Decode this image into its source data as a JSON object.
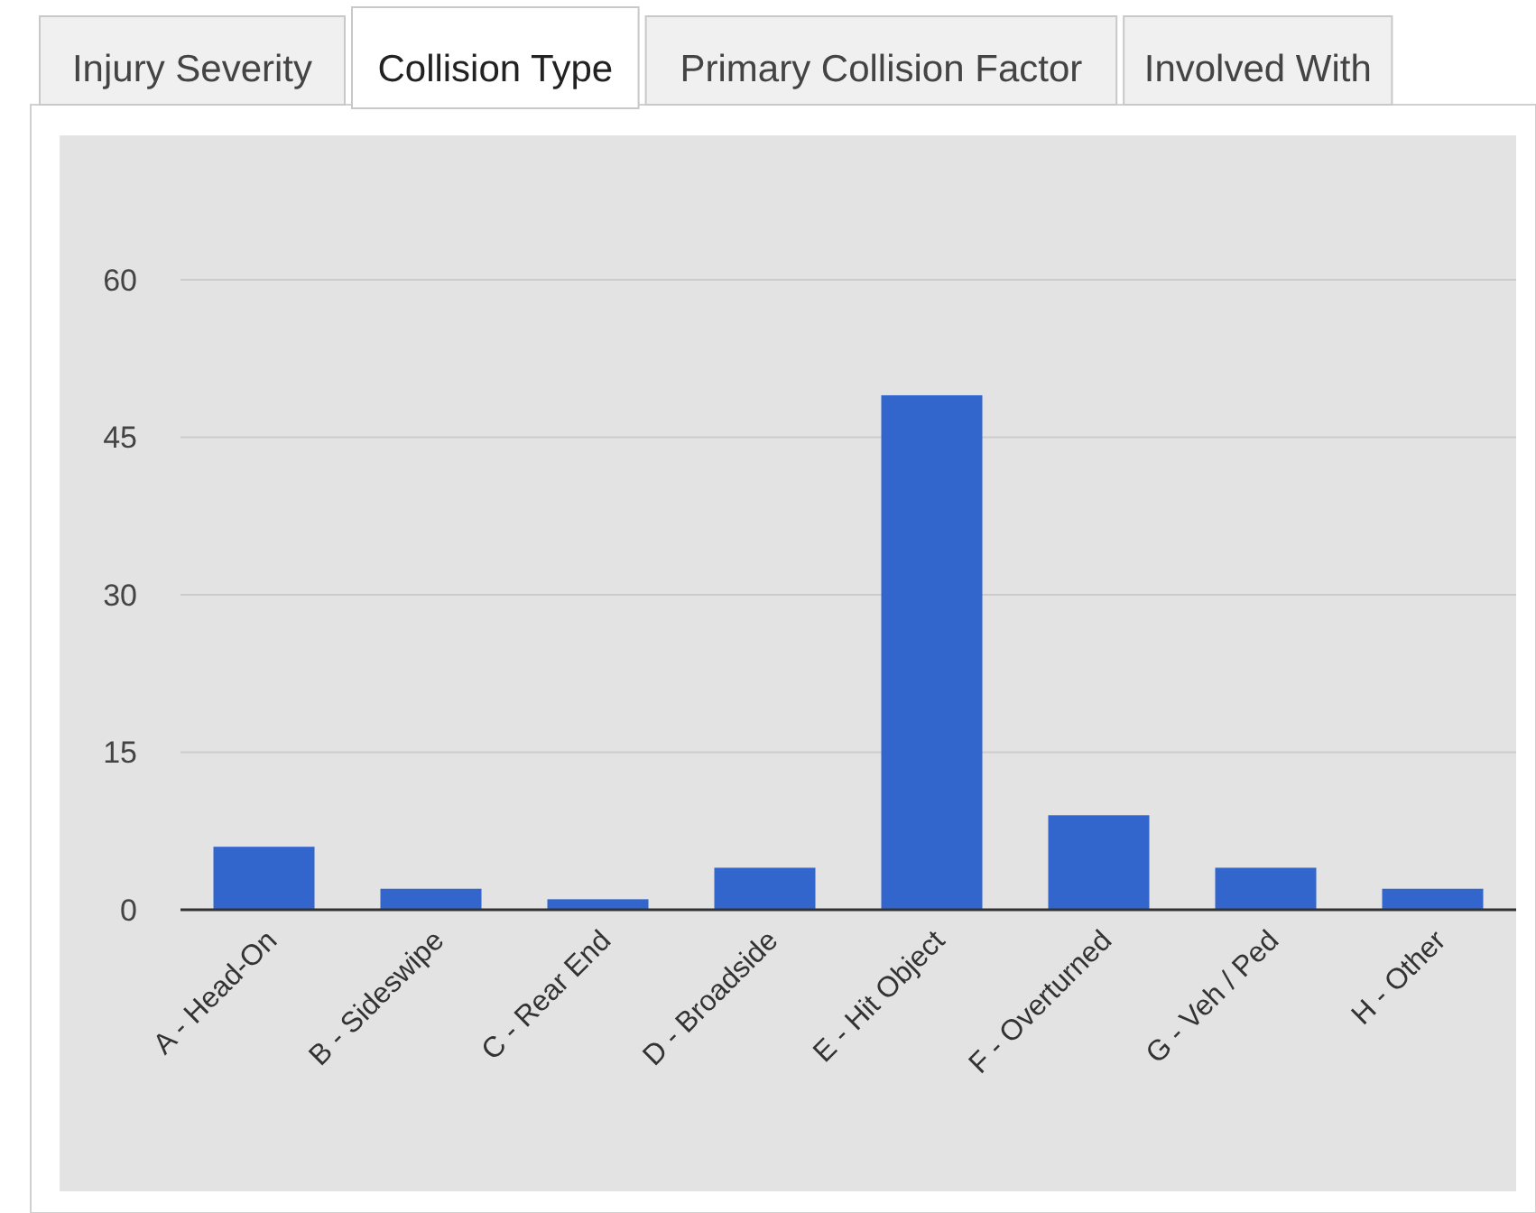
{
  "chart_data": {
    "type": "bar",
    "categories": [
      "A - Head-On",
      "B - Sideswipe",
      "C - Rear End",
      "D - Broadside",
      "E - Hit Object",
      "F - Overturned",
      "G - Veh / Ped",
      "H - Other"
    ],
    "values": [
      6,
      2,
      1,
      4,
      49,
      9,
      4,
      2
    ],
    "color": "#3366cc",
    "ylim": [
      0,
      60
    ],
    "yticks": [
      0,
      15,
      30,
      45,
      60
    ],
    "grid": "y",
    "annotations": [
      "Injury Severity",
      "Collision Type",
      "Primary Collision Factor",
      "Involved With"
    ]
  }
}
